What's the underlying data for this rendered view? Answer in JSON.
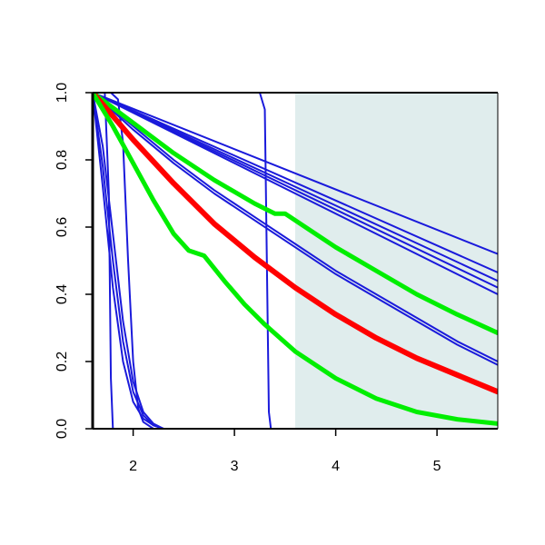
{
  "chart_data": {
    "type": "line",
    "title": "",
    "xlabel": "",
    "ylabel": "",
    "xlim": [
      1.6,
      5.6
    ],
    "ylim": [
      0.0,
      1.0
    ],
    "x_ticks": [
      {
        "value": 2,
        "label": "2"
      },
      {
        "value": 3,
        "label": "3"
      },
      {
        "value": 4,
        "label": "4"
      },
      {
        "value": 5,
        "label": "5"
      }
    ],
    "y_ticks": [
      {
        "value": 0.0,
        "label": "0.0"
      },
      {
        "value": 0.2,
        "label": "0.2"
      },
      {
        "value": 0.4,
        "label": "0.4"
      },
      {
        "value": 0.6,
        "label": "0.6"
      },
      {
        "value": 0.8,
        "label": "0.8"
      },
      {
        "value": 1.0,
        "label": "1.0"
      }
    ],
    "grid": false,
    "shaded_region": {
      "x_start": 3.6,
      "x_end": 5.6,
      "color": "#e0eded"
    },
    "colors": {
      "blue": "#1a1adb",
      "red": "#ff0000",
      "green": "#00ee00",
      "axis": "#000000"
    },
    "series": [
      {
        "color": "blue",
        "width": 2,
        "x": [
          1.6,
          5.6
        ],
        "y": [
          1.0,
          0.52
        ]
      },
      {
        "color": "blue",
        "width": 2,
        "x": [
          1.6,
          5.6
        ],
        "y": [
          1.0,
          0.465
        ]
      },
      {
        "color": "blue",
        "width": 2,
        "x": [
          1.6,
          5.6
        ],
        "y": [
          1.0,
          0.44
        ]
      },
      {
        "color": "blue",
        "width": 2,
        "x": [
          1.6,
          5.6
        ],
        "y": [
          1.0,
          0.42
        ]
      },
      {
        "color": "blue",
        "width": 2,
        "x": [
          1.6,
          5.6
        ],
        "y": [
          1.0,
          0.4
        ]
      },
      {
        "color": "blue",
        "width": 2,
        "x": [
          1.6,
          2.0,
          2.4,
          2.8,
          3.2,
          3.6,
          4.0,
          4.4,
          4.8,
          5.2,
          5.6
        ],
        "y": [
          1.0,
          0.9,
          0.8,
          0.71,
          0.63,
          0.55,
          0.47,
          0.4,
          0.33,
          0.26,
          0.2
        ]
      },
      {
        "color": "blue",
        "width": 2,
        "x": [
          1.6,
          2.0,
          2.4,
          2.8,
          3.2,
          3.6,
          4.0,
          4.4,
          4.8,
          5.2,
          5.6
        ],
        "y": [
          1.0,
          0.89,
          0.79,
          0.7,
          0.62,
          0.54,
          0.46,
          0.39,
          0.32,
          0.25,
          0.19
        ]
      },
      {
        "color": "blue",
        "width": 2,
        "x": [
          1.6,
          1.72,
          1.76,
          1.78,
          1.8,
          5.6
        ],
        "y": [
          1.0,
          1.0,
          0.7,
          0.15,
          0.0,
          0.0
        ]
      },
      {
        "color": "blue",
        "width": 2,
        "x": [
          1.6,
          1.78,
          1.85,
          1.9,
          1.95,
          2.0,
          2.05,
          2.1,
          2.2,
          5.6
        ],
        "y": [
          1.0,
          1.0,
          0.98,
          0.85,
          0.5,
          0.2,
          0.06,
          0.02,
          0.0,
          0.0
        ]
      },
      {
        "color": "blue",
        "width": 2,
        "x": [
          1.6,
          3.25,
          3.3,
          3.32,
          3.34,
          3.36,
          5.6
        ],
        "y": [
          1.0,
          1.0,
          0.95,
          0.5,
          0.05,
          0.0,
          0.0
        ]
      },
      {
        "color": "blue",
        "width": 2,
        "x": [
          1.6,
          1.7,
          1.8,
          1.9,
          2.0,
          2.1,
          2.2,
          2.3,
          5.6
        ],
        "y": [
          1.0,
          0.72,
          0.42,
          0.2,
          0.08,
          0.03,
          0.01,
          0.0,
          0.0
        ]
      },
      {
        "color": "blue",
        "width": 2,
        "x": [
          1.6,
          1.7,
          1.8,
          1.9,
          2.0,
          2.1,
          2.2,
          2.3,
          5.6
        ],
        "y": [
          1.0,
          0.78,
          0.5,
          0.26,
          0.11,
          0.04,
          0.01,
          0.0,
          0.0
        ]
      },
      {
        "color": "blue",
        "width": 2,
        "x": [
          1.6,
          1.7,
          1.8,
          1.9,
          2.0,
          2.1,
          2.2,
          2.3,
          5.6
        ],
        "y": [
          1.0,
          0.84,
          0.58,
          0.32,
          0.14,
          0.05,
          0.015,
          0.0,
          0.0
        ]
      },
      {
        "color": "green",
        "width": 5,
        "x": [
          1.6,
          2.0,
          2.4,
          2.8,
          3.2,
          3.4,
          3.5,
          3.6,
          4.0,
          4.4,
          4.8,
          5.2,
          5.6
        ],
        "y": [
          1.0,
          0.91,
          0.82,
          0.74,
          0.67,
          0.64,
          0.64,
          0.62,
          0.54,
          0.47,
          0.4,
          0.34,
          0.285
        ]
      },
      {
        "color": "red",
        "width": 6,
        "x": [
          1.6,
          2.0,
          2.4,
          2.8,
          3.2,
          3.6,
          4.0,
          4.4,
          4.8,
          5.2,
          5.6
        ],
        "y": [
          1.0,
          0.86,
          0.73,
          0.61,
          0.51,
          0.42,
          0.34,
          0.27,
          0.21,
          0.16,
          0.11
        ]
      },
      {
        "color": "green",
        "width": 5,
        "x": [
          1.6,
          1.8,
          2.0,
          2.2,
          2.4,
          2.55,
          2.7,
          2.9,
          3.1,
          3.3,
          3.6,
          4.0,
          4.4,
          4.8,
          5.2,
          5.6
        ],
        "y": [
          1.0,
          0.9,
          0.79,
          0.68,
          0.58,
          0.53,
          0.515,
          0.44,
          0.37,
          0.31,
          0.23,
          0.15,
          0.09,
          0.05,
          0.028,
          0.015
        ]
      }
    ]
  }
}
